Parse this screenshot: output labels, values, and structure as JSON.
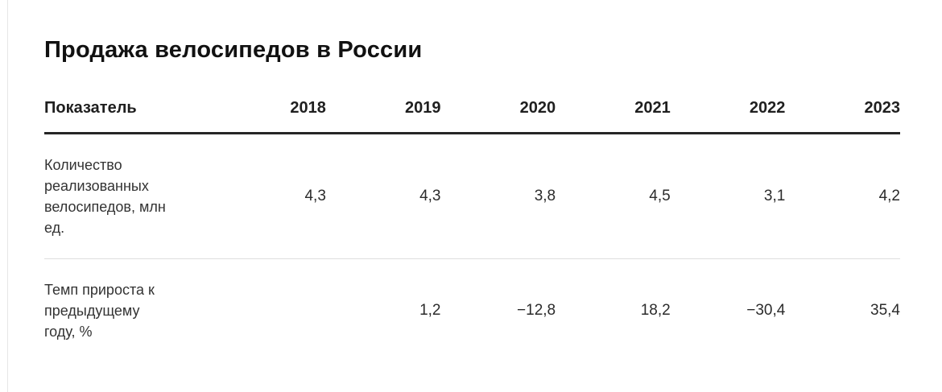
{
  "title": "Продажа велосипедов в России",
  "chart_data": {
    "type": "table",
    "title": "Продажа велосипедов в России",
    "columns": [
      "Показатель",
      "2018",
      "2019",
      "2020",
      "2021",
      "2022",
      "2023"
    ],
    "rows": [
      {
        "label": "Количество реализованных велосипедов, млн ед.",
        "values": [
          "4,3",
          "4,3",
          "3,8",
          "4,5",
          "3,1",
          "4,2"
        ]
      },
      {
        "label": "Темп прироста к предыдущему году, %",
        "values": [
          "",
          "1,2",
          "−12,8",
          "18,2",
          "−30,4",
          "35,4"
        ]
      }
    ]
  }
}
